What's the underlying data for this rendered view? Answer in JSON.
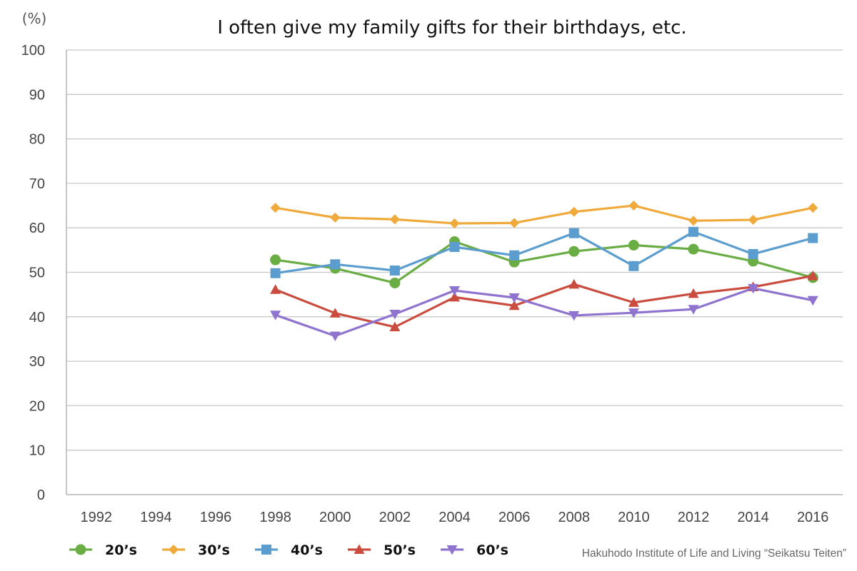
{
  "chart_data": {
    "type": "line",
    "title": "I often give my family gifts for their birthdays, etc.",
    "unit_label": "(%)",
    "source": "Hakuhodo Institute of Life and Living “Seikatsu Teiten”",
    "categories": [
      "1992",
      "1994",
      "1996",
      "1998",
      "2000",
      "2002",
      "2004",
      "2006",
      "2008",
      "2010",
      "2012",
      "2014",
      "2016"
    ],
    "ylim": [
      0,
      100
    ],
    "yticks": [
      "0",
      "10",
      "20",
      "30",
      "40",
      "50",
      "60",
      "70",
      "80",
      "90",
      "100"
    ],
    "grid": true,
    "legend_position": "bottom-left",
    "series": [
      {
        "name": "20’s",
        "color": "#6aad45",
        "marker": "circle",
        "values": [
          null,
          null,
          null,
          52.8,
          50.9,
          47.6,
          56.9,
          52.3,
          54.7,
          56.1,
          55.2,
          52.5,
          48.8
        ]
      },
      {
        "name": "30’s",
        "color": "#f0aa3b",
        "marker": "diamond",
        "values": [
          null,
          null,
          null,
          64.5,
          62.3,
          61.9,
          61.0,
          61.1,
          63.6,
          65.0,
          61.6,
          61.8,
          64.5
        ]
      },
      {
        "name": "40’s",
        "color": "#5b9dce",
        "marker": "square",
        "values": [
          null,
          null,
          null,
          49.8,
          51.8,
          50.4,
          55.7,
          53.8,
          58.8,
          51.4,
          59.1,
          54.1,
          57.7
        ]
      },
      {
        "name": "50’s",
        "color": "#c94c3e",
        "marker": "triangle-up",
        "values": [
          null,
          null,
          null,
          46.1,
          40.8,
          37.7,
          44.4,
          42.5,
          47.3,
          43.2,
          45.2,
          46.7,
          49.2
        ]
      },
      {
        "name": "60’s",
        "color": "#8f74cf",
        "marker": "triangle-down",
        "values": [
          null,
          null,
          null,
          40.4,
          35.7,
          40.6,
          45.9,
          44.3,
          40.3,
          40.9,
          41.7,
          46.4,
          43.7
        ]
      }
    ]
  }
}
